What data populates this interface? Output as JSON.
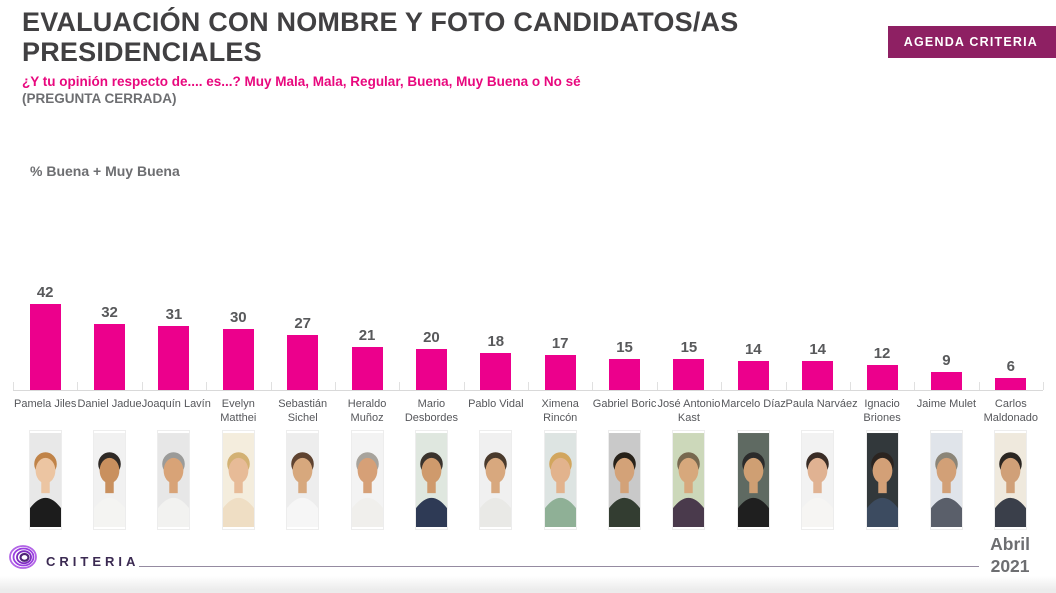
{
  "header": {
    "title_line1": "EVALUACIÓN CON NOMBRE Y FOTO CANDIDATOS/AS",
    "title_line2": "PRESIDENCIALES",
    "subtitle": "¿Y tu opinión respecto de.... es...? Muy Mala, Mala, Regular, Buena, Muy Buena o No sé",
    "question_type": "(PREGUNTA CERRADA)",
    "badge": "AGENDA CRITERIA"
  },
  "measure_label": "% Buena + Muy Buena",
  "footer": {
    "brand": "CRITERIA",
    "logo_icon": "concentric-circles-icon",
    "date_line1": "Abril",
    "date_line2": "2021"
  },
  "colors": {
    "bar": "#ec008c",
    "subtitle": "#e8087e",
    "badge_bg": "#8e2063",
    "title": "#414042",
    "value_label": "#58595b",
    "axis": "#d9d9d9",
    "brand_text": "#3b2a52"
  },
  "chart_data": {
    "type": "bar",
    "title": "% Buena + Muy Buena",
    "xlabel": "",
    "ylabel": "% Buena + Muy Buena",
    "ylim": [
      0,
      45
    ],
    "grid": false,
    "legend": "none",
    "value_labels_shown": true,
    "categories": [
      "Pamela Jiles",
      "Daniel Jadue",
      "Joaquín Lavín",
      "Evelyn Matthei",
      "Sebastián Sichel",
      "Heraldo Muñoz",
      "Mario Desbordes",
      "Pablo Vidal",
      "Ximena Rincón",
      "Gabriel Boric",
      "José Antonio Kast",
      "Marcelo Díaz",
      "Paula Narváez",
      "Ignacio Briones",
      "Jaime Mulet",
      "Carlos Maldonado"
    ],
    "values": [
      42,
      32,
      31,
      30,
      27,
      21,
      20,
      18,
      17,
      15,
      15,
      14,
      14,
      12,
      9,
      6
    ],
    "candidates": [
      {
        "name": "Pamela Jiles",
        "lines": [
          "Pamela Jiles"
        ],
        "value": 42,
        "photo": {
          "bg": "#e8e8e8",
          "hair": "#c08348",
          "skin": "#ecc5a2",
          "top": "#1c1c1c"
        }
      },
      {
        "name": "Daniel Jadue",
        "lines": [
          "Daniel Jadue"
        ],
        "value": 32,
        "photo": {
          "bg": "#f1f1f1",
          "hair": "#2f2a26",
          "skin": "#c9905e",
          "top": "#f4f4f2"
        }
      },
      {
        "name": "Joaquín Lavín",
        "lines": [
          "Joaquín Lavín"
        ],
        "value": 31,
        "photo": {
          "bg": "#e7e7e7",
          "hair": "#9b9b99",
          "skin": "#d8a377",
          "top": "#f2f2f0"
        }
      },
      {
        "name": "Evelyn Matthei",
        "lines": [
          "Evelyn",
          "Matthei"
        ],
        "value": 30,
        "photo": {
          "bg": "#f4eddd",
          "hair": "#d3b173",
          "skin": "#e7bb97",
          "top": "#efdec4"
        }
      },
      {
        "name": "Sebastián Sichel",
        "lines": [
          "Sebastián",
          "Sichel"
        ],
        "value": 27,
        "photo": {
          "bg": "#ededed",
          "hair": "#5f4330",
          "skin": "#d7a87d",
          "top": "#f6f6f6"
        }
      },
      {
        "name": "Heraldo Muñoz",
        "lines": [
          "Heraldo",
          "Muñoz"
        ],
        "value": 21,
        "photo": {
          "bg": "#f3f3f3",
          "hair": "#a7a39c",
          "skin": "#d6a077",
          "top": "#f0efec"
        }
      },
      {
        "name": "Mario Desbordes",
        "lines": [
          "Mario",
          "Desbordes"
        ],
        "value": 20,
        "photo": {
          "bg": "#dfe7df",
          "hair": "#3a332d",
          "skin": "#cf9a6c",
          "top": "#2e3a55"
        }
      },
      {
        "name": "Pablo Vidal",
        "lines": [
          "Pablo Vidal"
        ],
        "value": 18,
        "photo": {
          "bg": "#f0f0f0",
          "hair": "#4a3a2c",
          "skin": "#d8a87e",
          "top": "#e9e9e6"
        }
      },
      {
        "name": "Ximena Rincón",
        "lines": [
          "Ximena",
          "Rincón"
        ],
        "value": 17,
        "photo": {
          "bg": "#dde4e2",
          "hair": "#d2a65e",
          "skin": "#e2b38d",
          "top": "#8fb096"
        }
      },
      {
        "name": "Gabriel Boric",
        "lines": [
          "Gabriel Boric"
        ],
        "value": 15,
        "photo": {
          "bg": "#c9c9c9",
          "hair": "#272119",
          "skin": "#d3a278",
          "top": "#333d31"
        }
      },
      {
        "name": "José Antonio Kast",
        "lines": [
          "José Antonio",
          "Kast"
        ],
        "value": 15,
        "photo": {
          "bg": "#ccd8ba",
          "hair": "#77684f",
          "skin": "#d7a87c",
          "top": "#4a3a4c"
        }
      },
      {
        "name": "Marcelo Díaz",
        "lines": [
          "Marcelo Díaz"
        ],
        "value": 14,
        "photo": {
          "bg": "#5f6a62",
          "hair": "#2b2b2b",
          "skin": "#cf9f73",
          "top": "#1f1f1f"
        }
      },
      {
        "name": "Paula Narváez",
        "lines": [
          "Paula Narváez"
        ],
        "value": 14,
        "photo": {
          "bg": "#f2f2f2",
          "hair": "#3a2d26",
          "skin": "#e0b292",
          "top": "#f6f5f3"
        }
      },
      {
        "name": "Ignacio Briones",
        "lines": [
          "Ignacio",
          "Briones"
        ],
        "value": 12,
        "photo": {
          "bg": "#32383b",
          "hair": "#2b2420",
          "skin": "#d3a077",
          "top": "#3c4b60"
        }
      },
      {
        "name": "Jaime Mulet",
        "lines": [
          "Jaime Mulet"
        ],
        "value": 9,
        "photo": {
          "bg": "#e0e4ea",
          "hair": "#8b8578",
          "skin": "#d2a077",
          "top": "#5a5f6a"
        }
      },
      {
        "name": "Carlos Maldonado",
        "lines": [
          "Carlos",
          "Maldonado"
        ],
        "value": 6,
        "photo": {
          "bg": "#efe9dd",
          "hair": "#2b2622",
          "skin": "#d0a078",
          "top": "#3a3f4a"
        }
      }
    ]
  }
}
